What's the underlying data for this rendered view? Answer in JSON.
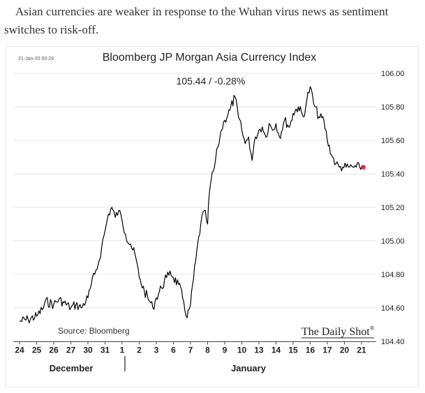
{
  "article": {
    "caption": "Asian currencies are weaker in response to the Wuhan virus news as sentiment switches to risk-off."
  },
  "colors": {
    "line": "#000000",
    "last_point": "#e8212a",
    "grid": "#e6e6e6",
    "text": "#222222"
  },
  "chart_data": {
    "type": "line",
    "timestamp": "21-Jan-20 00:29",
    "title": "Bloomberg JP Morgan Asia Currency Index",
    "subtitle": "105.44  /  -0.28%",
    "source": "Source: Bloomberg",
    "brand": "The Daily Shot",
    "brand_mark": "®",
    "ylim": [
      104.4,
      106.0
    ],
    "y_ticks": [
      104.4,
      104.6,
      104.8,
      105.0,
      105.2,
      105.4,
      105.6,
      105.8,
      106.0
    ],
    "y_tick_labels": [
      "104.40",
      "104.60",
      "104.80",
      "105.00",
      "105.20",
      "105.40",
      "105.60",
      "105.80",
      "106.00"
    ],
    "x_labels": [
      "24",
      "25",
      "26",
      "27",
      "30",
      "31",
      "1",
      "2",
      "3",
      "6",
      "7",
      "8",
      "9",
      "10",
      "13",
      "14",
      "15",
      "16",
      "17",
      "20",
      "21"
    ],
    "month_labels": [
      "December",
      "January"
    ],
    "grid": true,
    "x": [
      0,
      0.5,
      1.0,
      1.4,
      1.5,
      2.0,
      2.3,
      2.6,
      3.0,
      3.3,
      3.6,
      4.0,
      4.2,
      4.4,
      4.6,
      4.8,
      5.0,
      5.2,
      5.4,
      5.6,
      5.8,
      6.0,
      6.2,
      6.5,
      6.8,
      7.0,
      7.3,
      7.6,
      7.8,
      8.0,
      8.3,
      8.6,
      8.8,
      9.0,
      9.3,
      9.6,
      9.8,
      10.0,
      10.3,
      10.6,
      10.8,
      11.0,
      11.1,
      11.2,
      11.4,
      11.6,
      11.8,
      12.0,
      12.3,
      12.6,
      12.8,
      13.0,
      13.2,
      13.4,
      13.6,
      13.8,
      14.0,
      14.2,
      14.4,
      14.6,
      14.8,
      15.0,
      15.2,
      15.5,
      15.8,
      16.0,
      16.3,
      16.6,
      16.8,
      17.0,
      17.2,
      17.5,
      17.8,
      18.0,
      18.3,
      18.5,
      18.7,
      18.9,
      19.1,
      19.3,
      19.5,
      19.7,
      19.9,
      20.0,
      20.1
    ],
    "y": [
      104.52,
      104.53,
      104.55,
      104.6,
      104.64,
      104.62,
      104.65,
      104.63,
      104.6,
      104.62,
      104.6,
      104.66,
      104.74,
      104.8,
      104.86,
      104.96,
      105.06,
      105.16,
      105.2,
      105.14,
      105.18,
      105.12,
      105.04,
      104.98,
      104.9,
      104.78,
      104.7,
      104.64,
      104.6,
      104.66,
      104.72,
      104.78,
      104.82,
      104.78,
      104.74,
      104.64,
      104.54,
      104.62,
      104.88,
      105.1,
      105.18,
      105.1,
      105.28,
      105.36,
      105.44,
      105.56,
      105.66,
      105.72,
      105.78,
      105.86,
      105.74,
      105.66,
      105.58,
      105.62,
      105.48,
      105.62,
      105.66,
      105.68,
      105.62,
      105.7,
      105.66,
      105.7,
      105.62,
      105.72,
      105.68,
      105.76,
      105.8,
      105.74,
      105.84,
      105.92,
      105.82,
      105.74,
      105.72,
      105.6,
      105.5,
      105.46,
      105.44,
      105.44,
      105.44,
      105.44,
      105.44,
      105.44,
      105.44,
      105.44,
      105.44
    ],
    "last_value": 105.44
  }
}
